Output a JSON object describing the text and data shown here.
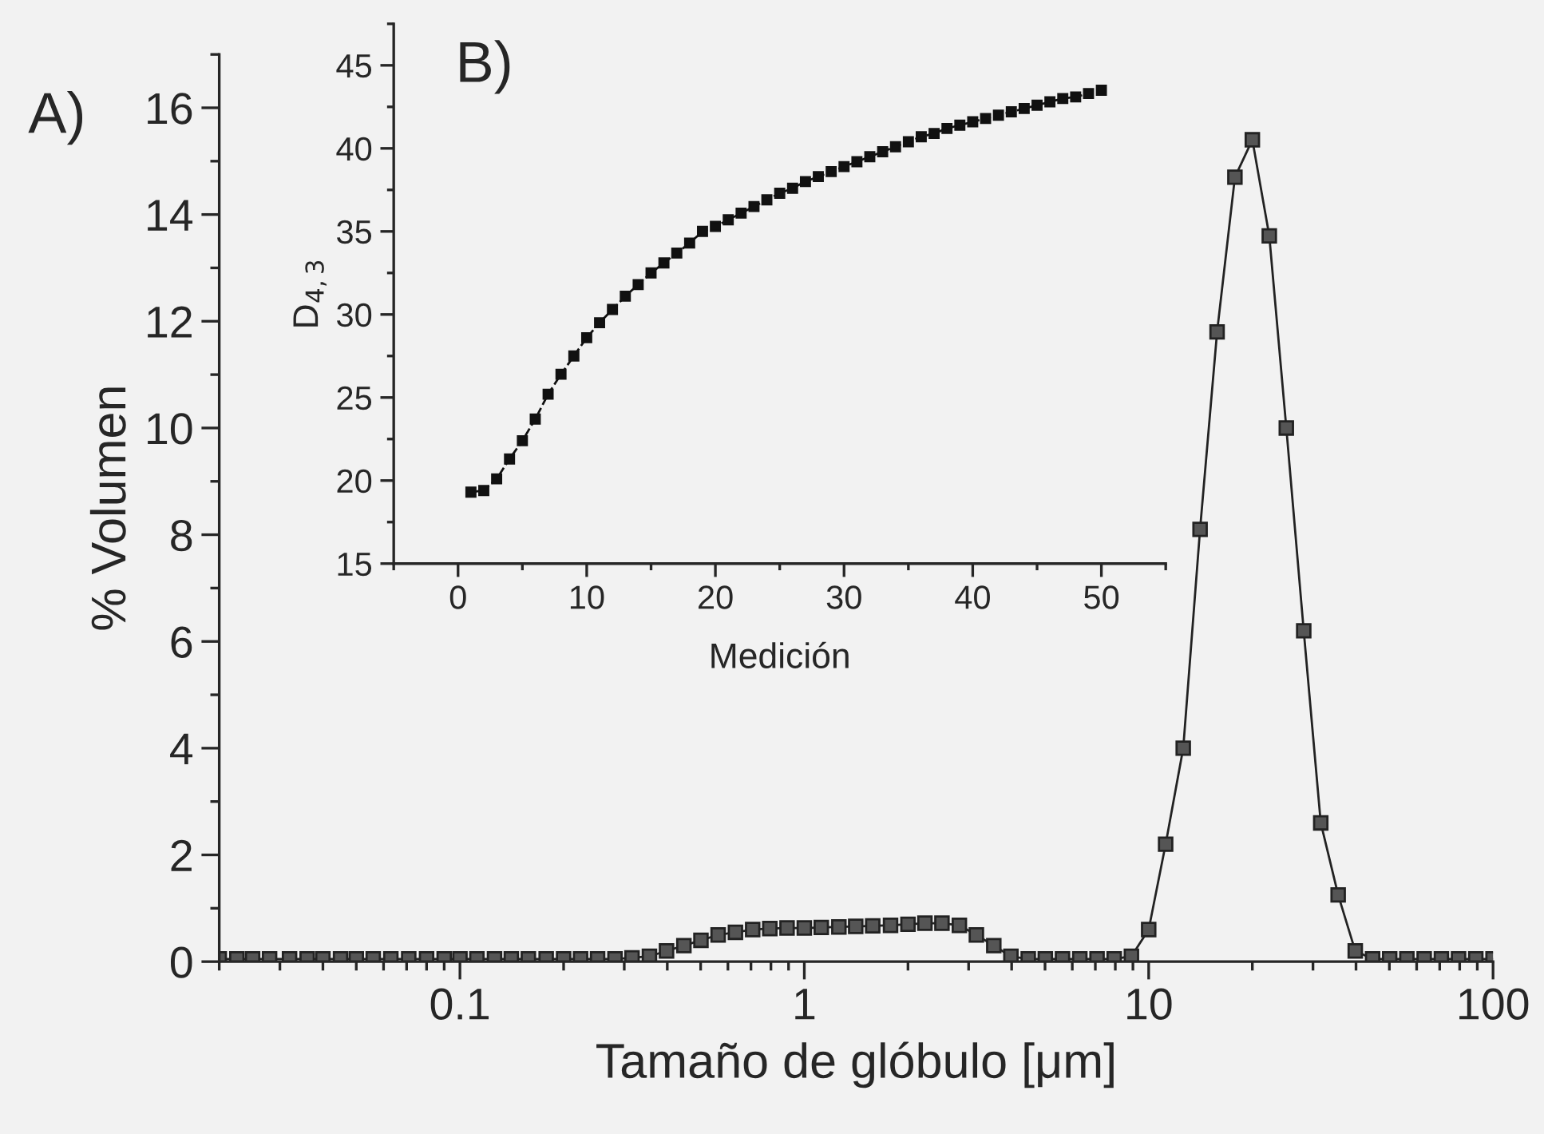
{
  "chart_data": [
    {
      "type": "line",
      "xlabel": "Tamaño de glóbulo [μm]",
      "ylabel": "% Volumen",
      "annotations": [
        "A)"
      ],
      "log": "x",
      "marker": "square",
      "line_style": "solid",
      "grid": false,
      "legend": false,
      "xlim": [
        0.02,
        100
      ],
      "xticks": [
        0.1,
        1,
        10,
        100
      ],
      "ylim": [
        0,
        17
      ],
      "yticks": [
        0,
        2,
        4,
        6,
        8,
        10,
        12,
        14,
        16
      ],
      "series": [
        {
          "color": "#222222",
          "x": [
            0.02,
            0.0225,
            0.025,
            0.028,
            0.032,
            0.036,
            0.04,
            0.045,
            0.05,
            0.056,
            0.063,
            0.071,
            0.08,
            0.09,
            0.1,
            0.112,
            0.126,
            0.141,
            0.158,
            0.178,
            0.2,
            0.224,
            0.251,
            0.282,
            0.316,
            0.355,
            0.398,
            0.447,
            0.501,
            0.562,
            0.631,
            0.708,
            0.794,
            0.891,
            1,
            1.12,
            1.26,
            1.41,
            1.58,
            1.78,
            2,
            2.24,
            2.51,
            2.82,
            3.16,
            3.55,
            3.98,
            4.47,
            5.01,
            5.62,
            6.31,
            7.08,
            7.94,
            8.91,
            10,
            11.2,
            12.6,
            14.1,
            15.8,
            17.8,
            20,
            22.4,
            25.1,
            28.2,
            31.6,
            35.5,
            39.8,
            44.7,
            50.1,
            56.2,
            63.1,
            70.8,
            79.4,
            89.1,
            100
          ],
          "values": [
            0.05,
            0.05,
            0.05,
            0.05,
            0.05,
            0.05,
            0.05,
            0.05,
            0.05,
            0.05,
            0.05,
            0.05,
            0.05,
            0.05,
            0.05,
            0.05,
            0.05,
            0.05,
            0.05,
            0.05,
            0.05,
            0.05,
            0.05,
            0.05,
            0.07,
            0.1,
            0.2,
            0.3,
            0.4,
            0.5,
            0.55,
            0.6,
            0.62,
            0.63,
            0.63,
            0.64,
            0.65,
            0.66,
            0.67,
            0.68,
            0.7,
            0.72,
            0.72,
            0.68,
            0.5,
            0.3,
            0.1,
            0.05,
            0.05,
            0.05,
            0.05,
            0.05,
            0.05,
            0.1,
            0.6,
            2.2,
            4.0,
            8.1,
            11.8,
            14.7,
            15.4,
            13.6,
            10.0,
            6.2,
            2.6,
            1.25,
            0.2,
            0.05,
            0.05,
            0.05,
            0.05,
            0.05,
            0.05,
            0.05,
            0.05
          ]
        }
      ]
    },
    {
      "type": "line",
      "xlabel": "Medición",
      "ylabel": "D$_{4,3}$",
      "annotations": [
        "B)"
      ],
      "marker": "square",
      "line_style": "dashed",
      "grid": false,
      "legend": false,
      "xlim": [
        -5,
        55
      ],
      "xticks": [
        0,
        10,
        20,
        30,
        40,
        50
      ],
      "ylim": [
        15,
        47.5
      ],
      "yticks": [
        15,
        20,
        25,
        30,
        35,
        40,
        45
      ],
      "series": [
        {
          "color": "#111111",
          "x": [
            1,
            2,
            3,
            4,
            5,
            6,
            7,
            8,
            9,
            10,
            11,
            12,
            13,
            14,
            15,
            16,
            17,
            18,
            19,
            20,
            21,
            22,
            23,
            24,
            25,
            26,
            27,
            28,
            29,
            30,
            31,
            32,
            33,
            34,
            35,
            36,
            37,
            38,
            39,
            40,
            41,
            42,
            43,
            44,
            45,
            46,
            47,
            48,
            49,
            50
          ],
          "values": [
            19.3,
            19.4,
            20.1,
            21.3,
            22.4,
            23.7,
            25.2,
            26.4,
            27.5,
            28.6,
            29.5,
            30.3,
            31.1,
            31.8,
            32.5,
            33.1,
            33.7,
            34.3,
            35.0,
            35.3,
            35.7,
            36.1,
            36.5,
            36.9,
            37.3,
            37.6,
            38.0,
            38.3,
            38.6,
            38.9,
            39.2,
            39.5,
            39.8,
            40.1,
            40.4,
            40.7,
            40.9,
            41.2,
            41.4,
            41.6,
            41.8,
            42.0,
            42.2,
            42.4,
            42.6,
            42.8,
            43.0,
            43.1,
            43.3,
            43.5
          ]
        }
      ]
    }
  ]
}
